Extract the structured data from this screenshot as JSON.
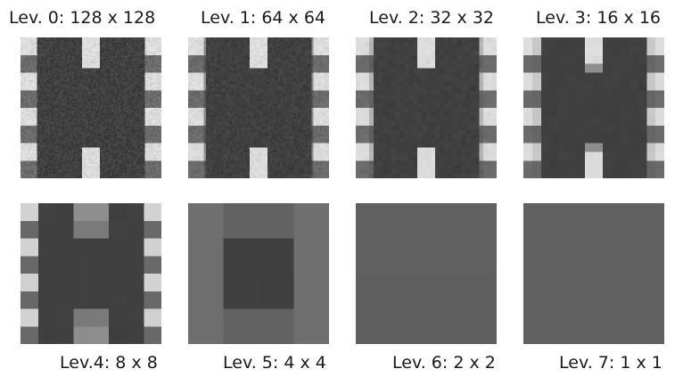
{
  "figure": {
    "tiles": [
      {
        "label": "Lev. 0: 128 x 128",
        "resolution": 128
      },
      {
        "label": "Lev. 1: 64 x 64",
        "resolution": 64
      },
      {
        "label": "Lev. 2: 32 x 32",
        "resolution": 32
      },
      {
        "label": "Lev. 3: 16 x 16",
        "resolution": 16
      },
      {
        "label": "Lev.4: 8 x 8",
        "resolution": 8
      },
      {
        "label": "Lev. 5: 4 x 4",
        "resolution": 4
      },
      {
        "label": "Lev. 6: 2 x 2",
        "resolution": 2
      },
      {
        "label": "Lev. 7: 1 x 1",
        "resolution": 1
      }
    ]
  }
}
